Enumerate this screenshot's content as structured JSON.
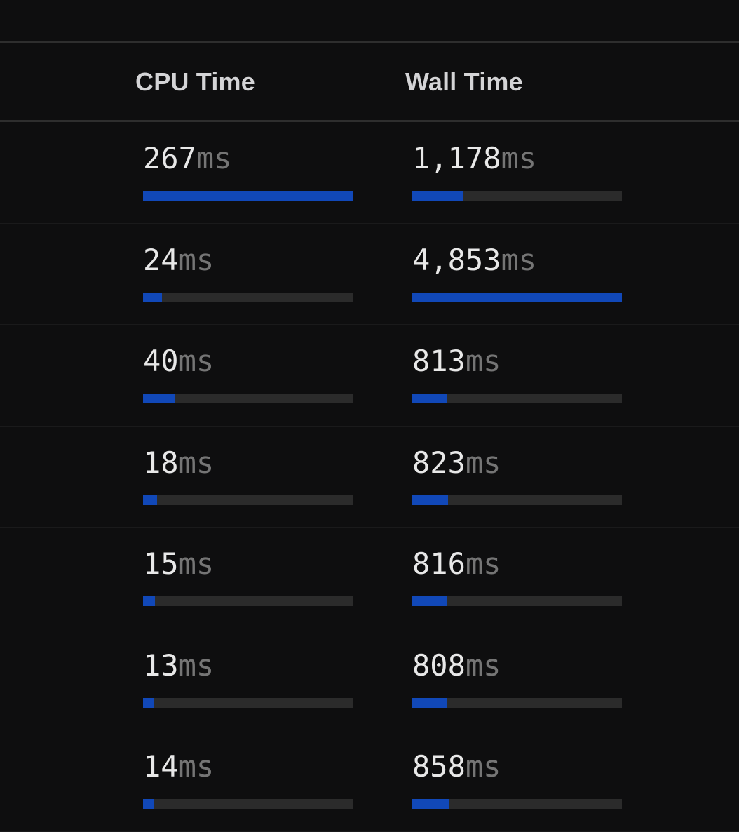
{
  "table": {
    "columns": [
      {
        "key": "cpu",
        "label": "CPU Time"
      },
      {
        "key": "wall",
        "label": "Wall Time"
      }
    ],
    "unit": "ms",
    "rows": [
      {
        "cpu": "267",
        "cpu_pct": 100,
        "wall": "1,178",
        "wall_pct": 24.3
      },
      {
        "cpu": "24",
        "cpu_pct": 9.0,
        "wall": "4,853",
        "wall_pct": 100
      },
      {
        "cpu": "40",
        "cpu_pct": 15.0,
        "wall": "813",
        "wall_pct": 16.8
      },
      {
        "cpu": "18",
        "cpu_pct": 6.7,
        "wall": "823",
        "wall_pct": 17.0
      },
      {
        "cpu": "15",
        "cpu_pct": 5.6,
        "wall": "816",
        "wall_pct": 16.8
      },
      {
        "cpu": "13",
        "cpu_pct": 4.9,
        "wall": "808",
        "wall_pct": 16.6
      },
      {
        "cpu": "14",
        "cpu_pct": 5.2,
        "wall": "858",
        "wall_pct": 17.7
      }
    ]
  },
  "colors": {
    "background": "#0e0e0f",
    "divider_strong": "#2e2e2e",
    "divider_row": "#1a1a1b",
    "bar_fill": "#1148b8",
    "bar_track": "#2b2b2b",
    "value_text": "#e8e8e8",
    "unit_text": "#757575",
    "header_text": "#d4d4d6"
  }
}
